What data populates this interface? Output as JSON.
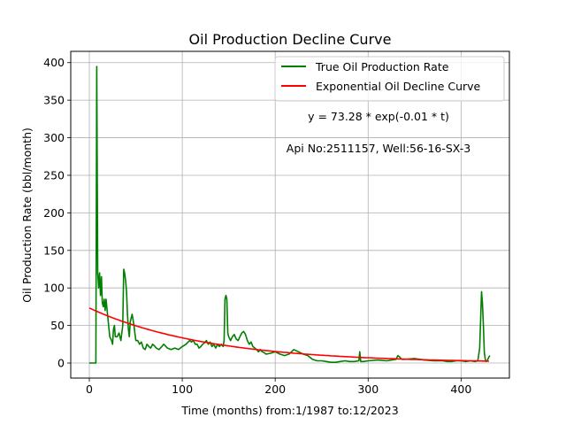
{
  "chart_data": {
    "type": "line",
    "title": "Oil Production Decline Curve",
    "xlabel": "Time (months) from:1/1987 to:12/2023",
    "ylabel": "Oil Production Rate (bbl/month)",
    "xlim": [
      -20,
      452
    ],
    "ylim": [
      -20,
      415
    ],
    "xticks": [
      0,
      100,
      200,
      300,
      400
    ],
    "yticks": [
      0,
      50,
      100,
      150,
      200,
      250,
      300,
      350,
      400
    ],
    "grid": true,
    "legend_position": "top-right",
    "annotations": [
      {
        "text": "y = 73.28 * exp(-0.01 * t)",
        "x": 310,
        "y": 325
      },
      {
        "text": "Api No:2511157, Well:56-16-SX-3",
        "x": 310,
        "y": 283
      }
    ],
    "series": [
      {
        "name": "True Oil Production Rate",
        "color": "#008000",
        "x": [
          0,
          6,
          7,
          8,
          9,
          10,
          11,
          12,
          13,
          14,
          15,
          16,
          17,
          18,
          20,
          22,
          24,
          25,
          26,
          27,
          28,
          30,
          32,
          34,
          36,
          37,
          38,
          39,
          40,
          41,
          42,
          43,
          44,
          46,
          48,
          49,
          50,
          52,
          54,
          56,
          58,
          60,
          62,
          64,
          66,
          68,
          70,
          72,
          75,
          78,
          80,
          84,
          88,
          92,
          96,
          100,
          104,
          108,
          110,
          112,
          114,
          116,
          118,
          120,
          122,
          124,
          126,
          128,
          130,
          132,
          134,
          136,
          138,
          140,
          142,
          144,
          145,
          146,
          147,
          148,
          149,
          150,
          152,
          154,
          156,
          158,
          160,
          162,
          164,
          166,
          168,
          170,
          172,
          174,
          176,
          178,
          180,
          182,
          184,
          186,
          188,
          190,
          195,
          200,
          205,
          210,
          215,
          220,
          225,
          230,
          235,
          240,
          245,
          250,
          255,
          260,
          265,
          270,
          275,
          280,
          285,
          290,
          291,
          292,
          295,
          300,
          310,
          320,
          330,
          332,
          334,
          336,
          340,
          350,
          360,
          370,
          380,
          385,
          390,
          395,
          400,
          405,
          410,
          415,
          418,
          420,
          422,
          423,
          424,
          425,
          426,
          427,
          428,
          430,
          431
        ],
        "y": [
          0,
          0,
          0,
          395,
          120,
          100,
          120,
          90,
          115,
          80,
          75,
          85,
          70,
          85,
          60,
          35,
          30,
          25,
          45,
          50,
          35,
          35,
          40,
          30,
          50,
          125,
          120,
          110,
          95,
          65,
          45,
          35,
          55,
          65,
          50,
          40,
          30,
          30,
          25,
          28,
          20,
          18,
          25,
          22,
          20,
          25,
          23,
          20,
          18,
          22,
          25,
          20,
          18,
          20,
          18,
          22,
          25,
          30,
          28,
          30,
          25,
          25,
          20,
          22,
          25,
          27,
          30,
          25,
          28,
          22,
          25,
          20,
          25,
          22,
          25,
          22,
          30,
          85,
          90,
          85,
          40,
          35,
          30,
          35,
          38,
          32,
          30,
          35,
          40,
          42,
          38,
          30,
          25,
          28,
          22,
          20,
          18,
          15,
          18,
          15,
          14,
          12,
          13,
          15,
          12,
          10,
          12,
          18,
          15,
          12,
          10,
          5,
          3,
          3,
          2,
          1,
          1,
          2,
          3,
          2,
          2,
          3,
          15,
          2,
          2,
          3,
          4,
          3,
          5,
          10,
          8,
          5,
          5,
          6,
          4,
          3,
          3,
          2,
          2,
          3,
          3,
          2,
          3,
          2,
          3,
          20,
          95,
          80,
          50,
          15,
          5,
          2,
          3,
          8,
          10
        ]
      },
      {
        "name": "Exponential Oil Decline Curve",
        "color": "#ff0000",
        "model": {
          "a": 73.28,
          "b": -0.0078
        },
        "x_range": [
          0,
          430
        ]
      }
    ]
  }
}
